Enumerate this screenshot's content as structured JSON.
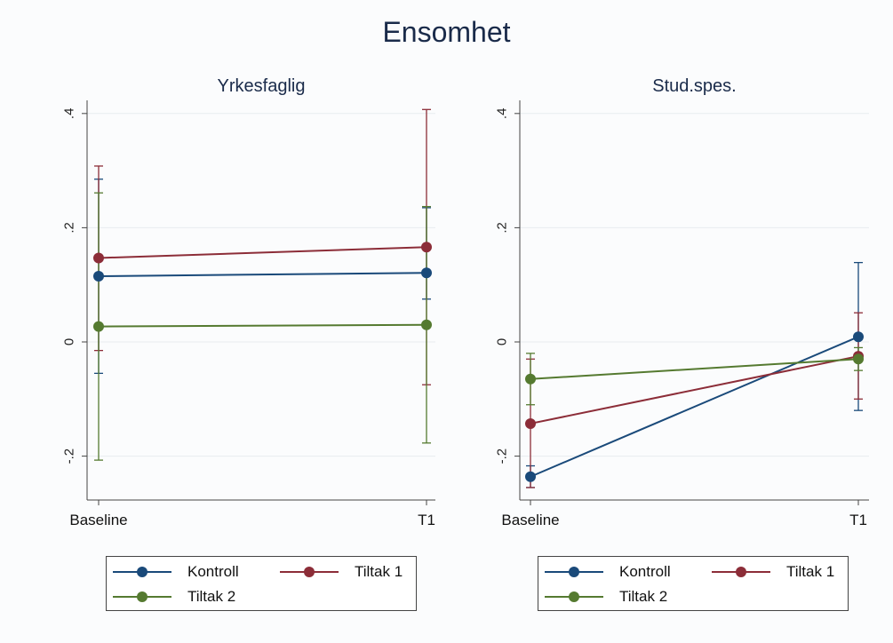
{
  "figure": {
    "title": "Ensomhet"
  },
  "colors": {
    "Kontroll": "#1a4a7a",
    "Tiltak 1": "#8c2d38",
    "Tiltak 2": "#557a30"
  },
  "legend_entries": [
    "Kontroll",
    "Tiltak 1",
    "Tiltak 2"
  ],
  "chart_data": [
    {
      "type": "line",
      "title": "Yrkesfaglig",
      "categories": [
        "Baseline",
        "T1"
      ],
      "yticks": [
        ".4",
        ".2",
        "0",
        "-.2"
      ],
      "ylim": [
        -0.27,
        0.42
      ],
      "grid": true,
      "legend_placement": "bottom",
      "series": [
        {
          "name": "Kontroll",
          "values": [
            0.115,
            0.121
          ],
          "ci_low": [
            -0.055,
            0.075
          ],
          "ci_high": [
            0.285,
            0.235
          ]
        },
        {
          "name": "Tiltak 1",
          "values": [
            0.147,
            0.166
          ],
          "ci_low": [
            -0.015,
            -0.075
          ],
          "ci_high": [
            0.308,
            0.407
          ]
        },
        {
          "name": "Tiltak 2",
          "values": [
            0.027,
            0.03
          ],
          "ci_low": [
            -0.207,
            -0.177
          ],
          "ci_high": [
            0.261,
            0.237
          ]
        }
      ]
    },
    {
      "type": "line",
      "title": "Stud.spes.",
      "categories": [
        "Baseline",
        "T1"
      ],
      "yticks": [
        ".4",
        ".2",
        "0",
        "-.2"
      ],
      "ylim": [
        -0.27,
        0.42
      ],
      "grid": true,
      "legend_placement": "bottom",
      "series": [
        {
          "name": "Kontroll",
          "values": [
            -0.236,
            0.009
          ],
          "ci_low": [
            -0.255,
            -0.12
          ],
          "ci_high": [
            -0.217,
            0.139
          ]
        },
        {
          "name": "Tiltak 1",
          "values": [
            -0.143,
            -0.025
          ],
          "ci_low": [
            -0.255,
            -0.1
          ],
          "ci_high": [
            -0.03,
            0.051
          ]
        },
        {
          "name": "Tiltak 2",
          "values": [
            -0.065,
            -0.03
          ],
          "ci_low": [
            -0.11,
            -0.05
          ],
          "ci_high": [
            -0.02,
            -0.01
          ]
        }
      ]
    }
  ]
}
